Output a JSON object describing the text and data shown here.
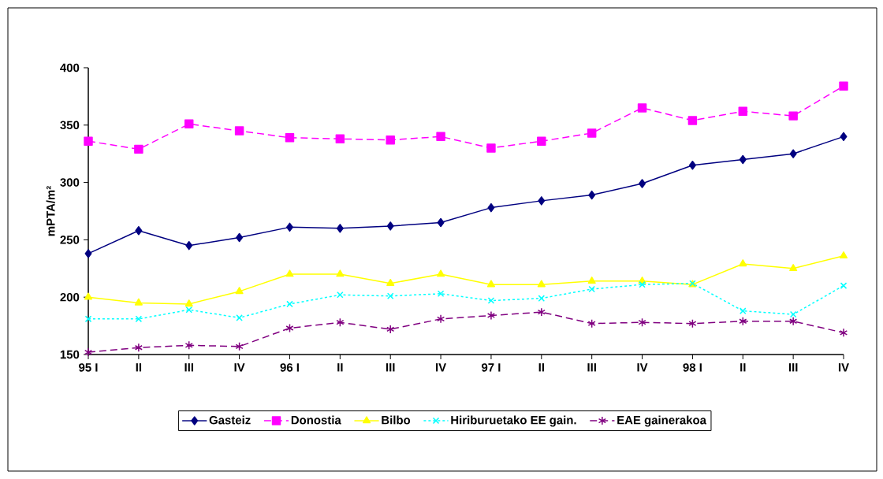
{
  "chart_data": {
    "type": "line",
    "ylabel": "mPTA/m²",
    "categories": [
      "95 I",
      "II",
      "III",
      "IV",
      "96 I",
      "II",
      "III",
      "IV",
      "97 I",
      "II",
      "III",
      "IV",
      "98 I",
      "II",
      "III",
      "IV"
    ],
    "series": [
      {
        "name": "Gasteiz",
        "color": "#000080",
        "marker": "diamond",
        "line_style": "solid",
        "values": [
          238,
          258,
          245,
          252,
          261,
          260,
          262,
          265,
          278,
          284,
          289,
          299,
          315,
          320,
          325,
          340
        ]
      },
      {
        "name": "Donostia",
        "color": "#ff00ff",
        "marker": "square",
        "line_style": "dashed",
        "values": [
          336,
          329,
          351,
          345,
          339,
          338,
          337,
          340,
          330,
          336,
          343,
          365,
          354,
          362,
          358,
          384
        ]
      },
      {
        "name": "Bilbo",
        "color": "#ffff00",
        "marker": "triangle",
        "line_style": "solid",
        "values": [
          200,
          195,
          194,
          205,
          220,
          220,
          212,
          220,
          211,
          211,
          214,
          214,
          211,
          229,
          225,
          236
        ]
      },
      {
        "name": "Hiriburuetako EE gain.",
        "color": "#00ffff",
        "marker": "cross",
        "line_style": "dotted",
        "values": [
          181,
          181,
          189,
          182,
          194,
          202,
          201,
          203,
          197,
          199,
          207,
          211,
          212,
          188,
          185,
          210
        ]
      },
      {
        "name": "EAE gainerakoa",
        "color": "#800080",
        "marker": "cross",
        "line_style": "dashed",
        "values": [
          152,
          156,
          158,
          157,
          173,
          178,
          172,
          181,
          184,
          187,
          177,
          178,
          177,
          179,
          179,
          169
        ]
      }
    ],
    "ylim": [
      150,
      400
    ],
    "yticks": [
      150,
      200,
      250,
      300,
      350,
      400
    ],
    "grid": false,
    "legend": "bottom"
  }
}
